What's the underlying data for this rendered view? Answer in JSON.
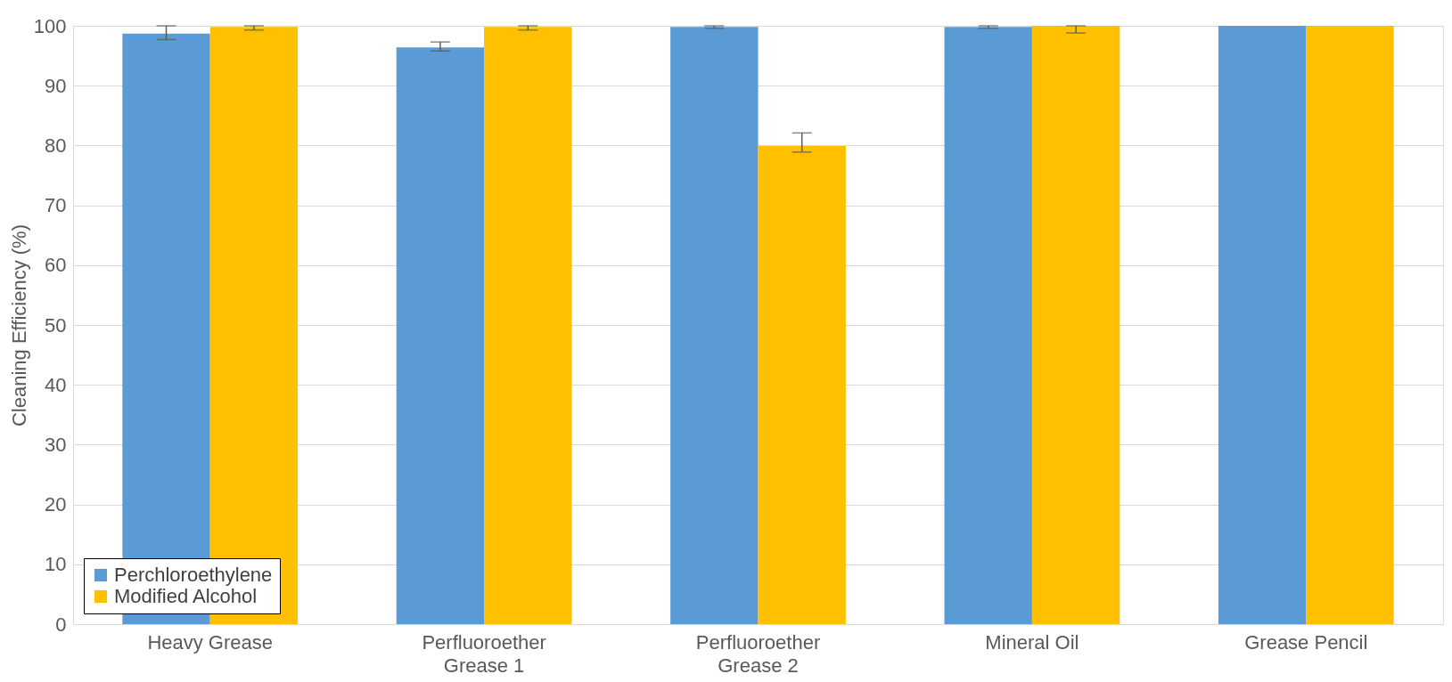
{
  "chart_data": {
    "type": "bar",
    "ylabel": "Cleaning Efficiency (%)",
    "categories": [
      [
        "Heavy Grease"
      ],
      [
        "Perfluoroether",
        "Grease 1"
      ],
      [
        "Perfluoroether",
        "Grease 2"
      ],
      [
        "Mineral Oil"
      ],
      [
        "Grease Pencil"
      ]
    ],
    "series": [
      {
        "name": "Perchloroethylene",
        "color": "#5b9bd5",
        "values": [
          98.7,
          96.4,
          99.8,
          99.8,
          100
        ],
        "errors": [
          [
            97.7,
            100
          ],
          [
            95.8,
            97.3
          ],
          [
            99.6,
            100
          ],
          [
            99.6,
            100
          ],
          null
        ]
      },
      {
        "name": "Modified Alcohol",
        "color": "#ffc000",
        "values": [
          99.8,
          99.8,
          79.9,
          100,
          100
        ],
        "errors": [
          [
            99.3,
            100
          ],
          [
            99.3,
            100
          ],
          [
            78.9,
            82.1
          ],
          [
            98.8,
            100
          ],
          null
        ]
      }
    ],
    "ylim": [
      0,
      100
    ],
    "yticks": [
      0,
      10,
      20,
      30,
      40,
      50,
      60,
      70,
      80,
      90,
      100
    ],
    "grid": "y",
    "legend": "bottom left"
  }
}
